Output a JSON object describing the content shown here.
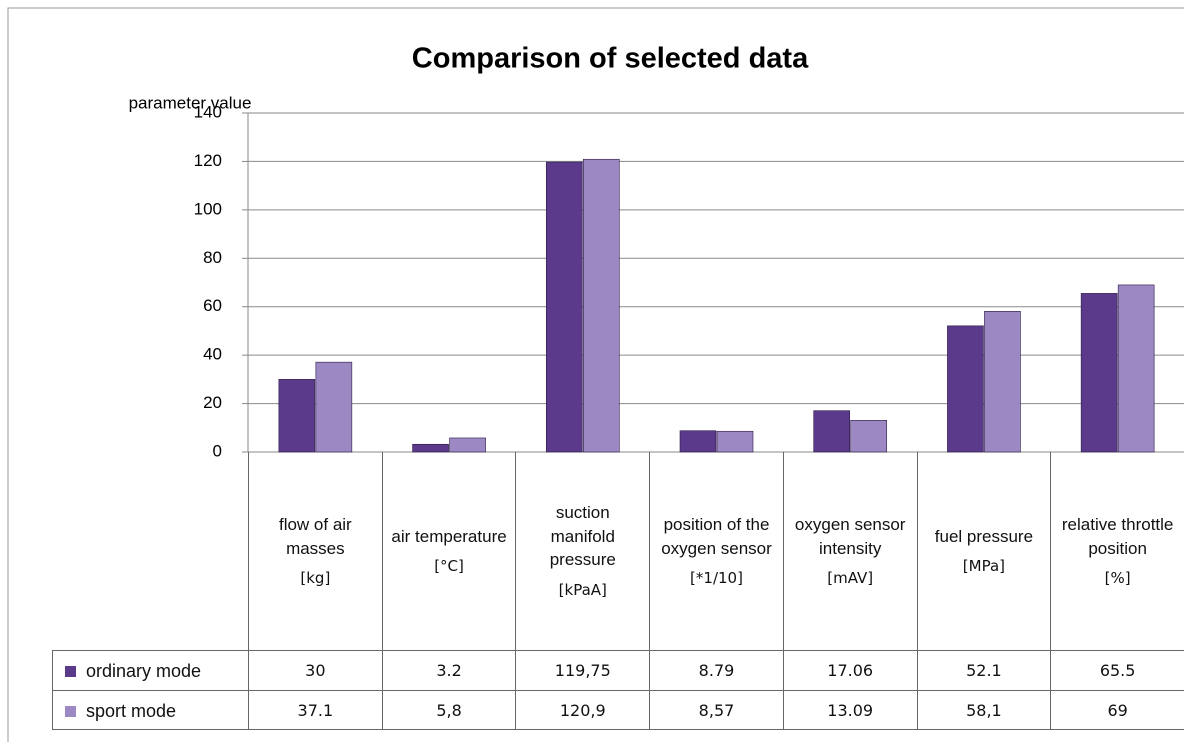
{
  "chart_data": {
    "type": "bar",
    "title": "Comparison of selected data",
    "y_label": "parameter value",
    "categories": [
      "flow of air masses",
      "air temperature",
      "suction manifold pressure",
      "position of the oxygen sensor",
      "oxygen sensor intensity",
      "fuel pressure",
      "relative throttle position"
    ],
    "units": [
      "[kg]",
      "[°C]",
      "[kPaA]",
      "[*1/10]",
      "[mAV]",
      "[MPa]",
      "[%]"
    ],
    "series": [
      {
        "name": "ordinary mode",
        "color": "#5b3a8c",
        "values": [
          30,
          3.2,
          119.75,
          8.79,
          17.06,
          52.1,
          65.5
        ],
        "value_labels": [
          "30",
          "3.2",
          "119,75",
          "8.79",
          "17.06",
          "52.1",
          "65.5"
        ]
      },
      {
        "name": "sport mode",
        "color": "#9c88c2",
        "values": [
          37.1,
          5.8,
          120.9,
          8.57,
          13.09,
          58.1,
          69
        ],
        "value_labels": [
          "37.1",
          "5,8",
          "120,9",
          "8,57",
          "13.09",
          "58,1",
          "69"
        ]
      }
    ],
    "ylim": [
      0,
      140
    ],
    "yticks": [
      0,
      20,
      40,
      60,
      80,
      100,
      120,
      140
    ],
    "grid": true
  }
}
